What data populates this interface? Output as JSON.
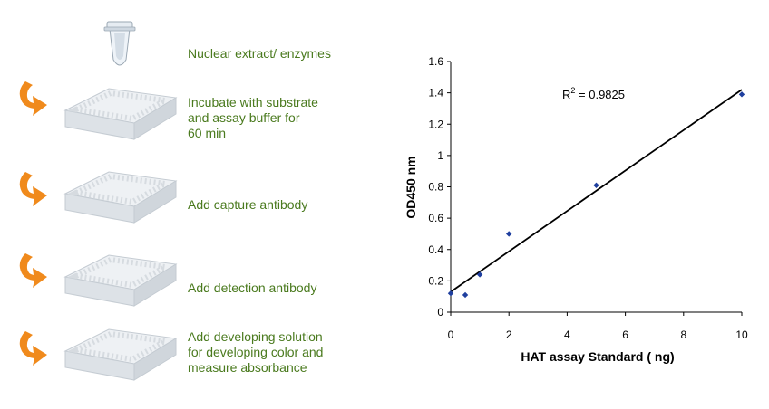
{
  "steps": [
    {
      "text": "Nuclear extract/ enzymes",
      "icon": "tube-icon"
    },
    {
      "text": "Incubate with substrate\nand assay buffer for\n60 min",
      "icon": "plate-icon"
    },
    {
      "text": "Add capture antibody",
      "icon": "plate-icon"
    },
    {
      "text": "Add detection antibody",
      "icon": "plate-icon"
    },
    {
      "text": "Add developing solution\nfor developing color and\nmeasure absorbance",
      "icon": "plate-icon"
    }
  ],
  "colors": {
    "step_text": "#4a7a1e",
    "arrow": "#f08a1c",
    "point": "#1f3f9f",
    "line": "#000000"
  },
  "chart_data": {
    "type": "scatter",
    "xlabel": "HAT assay Standard ( ng)",
    "ylabel": "OD450 nm",
    "xlim": [
      0,
      10
    ],
    "ylim": [
      0,
      1.6
    ],
    "xticks": [
      0,
      2,
      4,
      6,
      8,
      10
    ],
    "yticks": [
      0,
      0.2,
      0.4,
      0.6,
      0.8,
      1,
      1.2,
      1.4,
      1.6
    ],
    "points": [
      {
        "x": 0,
        "y": 0.12
      },
      {
        "x": 0.5,
        "y": 0.11
      },
      {
        "x": 1,
        "y": 0.24
      },
      {
        "x": 2,
        "y": 0.5
      },
      {
        "x": 5,
        "y": 0.81
      },
      {
        "x": 10,
        "y": 1.39
      }
    ],
    "trendline": {
      "x": [
        0,
        10
      ],
      "y": [
        0.13,
        1.42
      ]
    },
    "annotation": {
      "r_label": "R",
      "r_sup": "2",
      "r_value": " = 0.9825"
    },
    "grid": false
  }
}
